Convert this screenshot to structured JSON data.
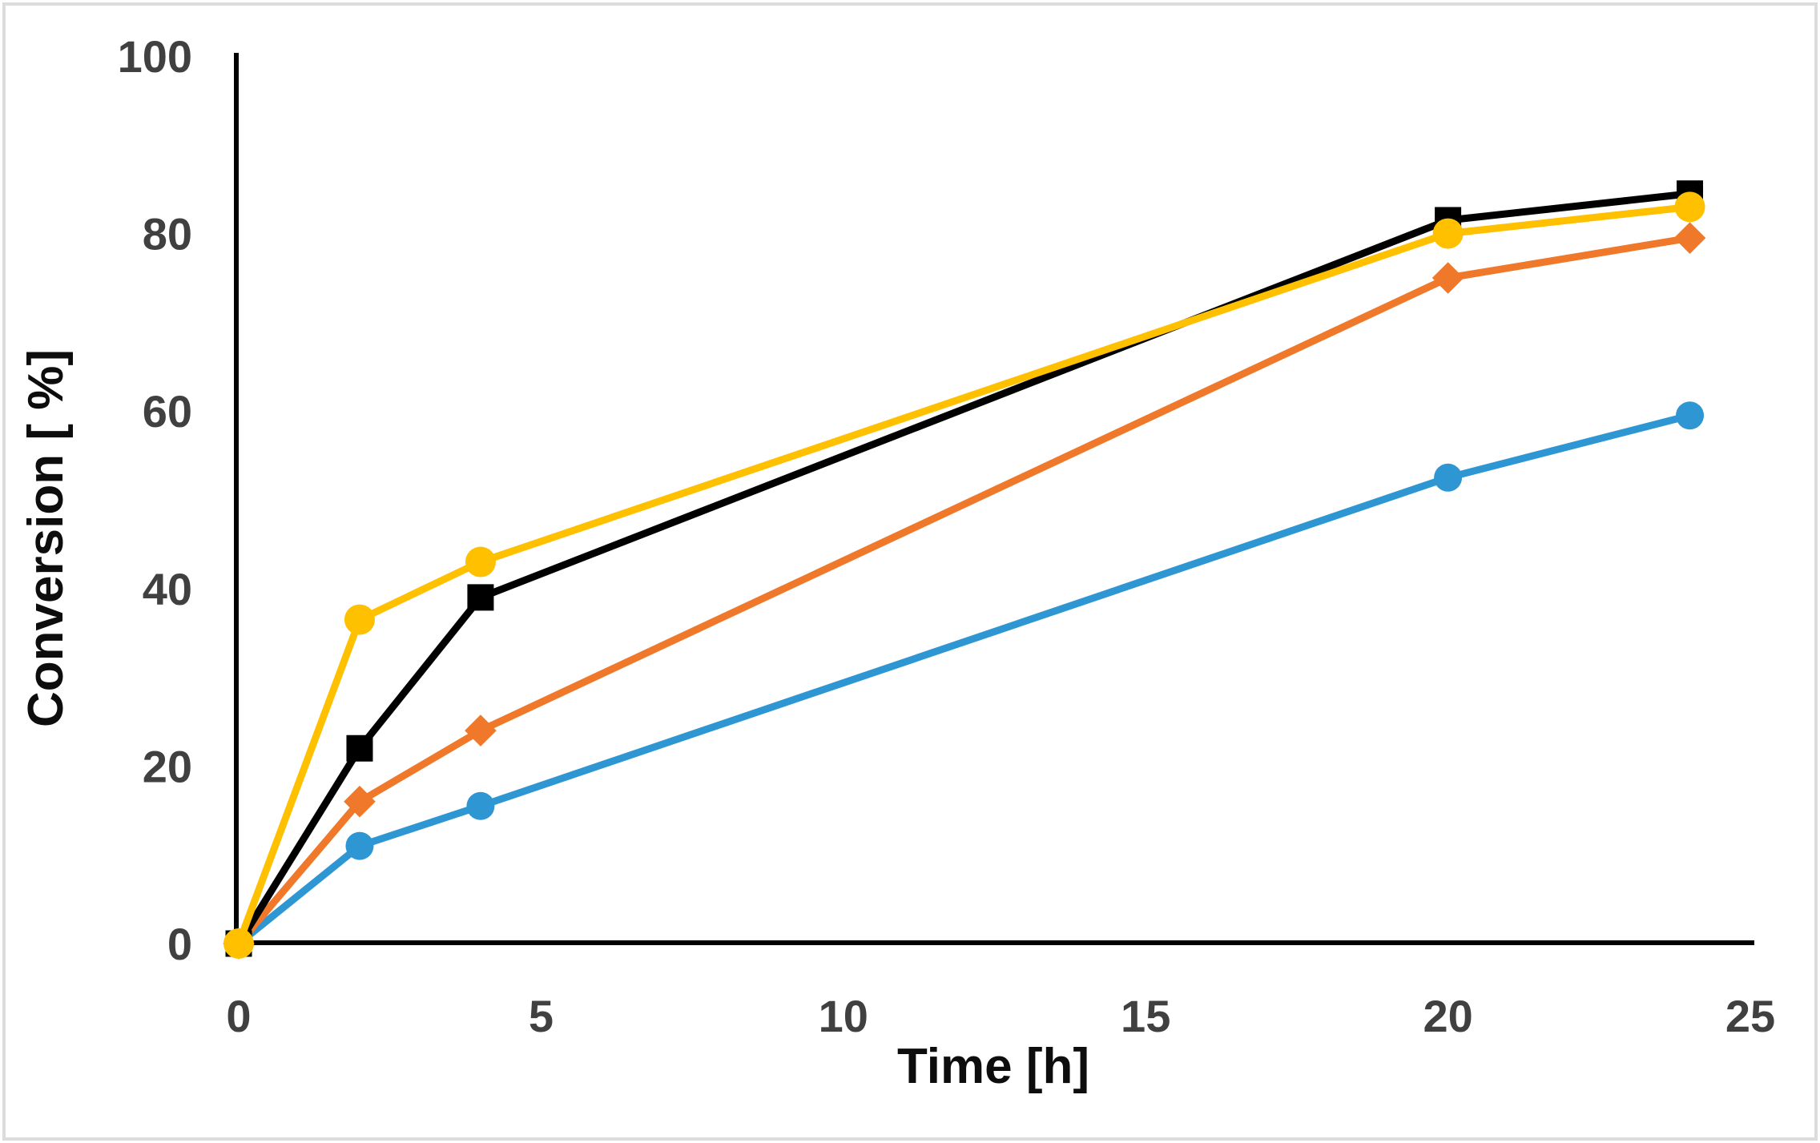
{
  "chart_data": {
    "type": "line",
    "title": "",
    "xlabel": "Time [h]",
    "ylabel": "Conversion [ %]",
    "xlim": [
      0,
      25
    ],
    "ylim": [
      0,
      100
    ],
    "x_ticks": [
      0,
      5,
      10,
      15,
      20,
      25
    ],
    "y_ticks": [
      0,
      20,
      40,
      60,
      80,
      100
    ],
    "grid": false,
    "legend": false,
    "axis_color": "#000000",
    "tick_label_color": "#404040",
    "x": [
      0,
      2,
      4,
      20,
      24
    ],
    "series": [
      {
        "name": "blue-circles",
        "marker": "circle",
        "color": "#2E96D2",
        "values": [
          0,
          11,
          15.5,
          52.5,
          59.5
        ]
      },
      {
        "name": "orange-diamonds",
        "marker": "diamond",
        "color": "#F0782A",
        "values": [
          0,
          16,
          24,
          75,
          79.5
        ]
      },
      {
        "name": "black-squares",
        "marker": "square",
        "color": "#000000",
        "values": [
          0,
          22,
          39,
          81.5,
          84.5
        ]
      },
      {
        "name": "gold-circles",
        "marker": "circle",
        "color": "#FFC000",
        "values": [
          0,
          36.5,
          43,
          80,
          83
        ]
      }
    ]
  }
}
